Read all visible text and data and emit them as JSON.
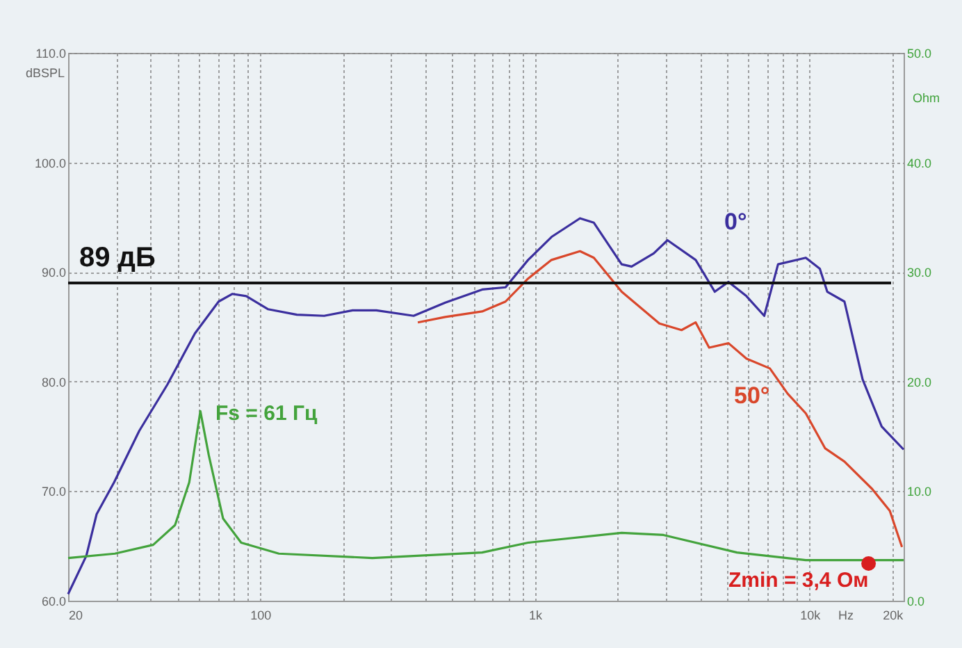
{
  "chart_data": {
    "type": "line",
    "xlim": [
      20,
      22000
    ],
    "log": "x",
    "xticks": [
      20,
      {
        "value": 30,
        "label": null
      },
      {
        "value": 40,
        "label": null
      },
      {
        "value": 50,
        "label": null
      },
      {
        "value": 60,
        "label": null
      },
      {
        "value": 70,
        "label": null
      },
      {
        "value": 80,
        "label": null
      },
      {
        "value": 90,
        "label": null
      },
      100,
      {
        "value": 200,
        "label": null
      },
      {
        "value": 300,
        "label": null
      },
      {
        "value": 400,
        "label": null
      },
      {
        "value": 500,
        "label": null
      },
      {
        "value": 600,
        "label": null
      },
      {
        "value": 700,
        "label": null
      },
      {
        "value": 800,
        "label": null
      },
      {
        "value": 900,
        "label": null
      },
      {
        "value": 1000,
        "label": "1k"
      },
      {
        "value": 2000,
        "label": null
      },
      {
        "value": 3000,
        "label": null
      },
      {
        "value": 4000,
        "label": null
      },
      {
        "value": 5000,
        "label": null
      },
      {
        "value": 6000,
        "label": null
      },
      {
        "value": 7000,
        "label": null
      },
      {
        "value": 8000,
        "label": null
      },
      {
        "value": 9000,
        "label": null
      },
      {
        "value": 10000,
        "label": "10k"
      },
      {
        "value": 20000,
        "label": "20k"
      }
    ],
    "xlabel": "Hz",
    "ylabel": "dBSPL",
    "y2label": "Ohm",
    "ylim": [
      60,
      110
    ],
    "yticks": [
      {
        "value": 60,
        "label": "60.0"
      },
      {
        "value": 70,
        "label": "70.0"
      },
      {
        "value": 80,
        "label": "80.0"
      },
      {
        "value": 90,
        "label": "90.0"
      },
      {
        "value": 100,
        "label": "100.0"
      },
      {
        "value": 110,
        "label": "110.0"
      }
    ],
    "y2lim": [
      0,
      50
    ],
    "y2ticks": [
      {
        "value": 0,
        "label": "0.0"
      },
      {
        "value": 10,
        "label": "10.0"
      },
      {
        "value": 20,
        "label": "20.0"
      },
      {
        "value": 30,
        "label": "30.0"
      },
      {
        "value": 40,
        "label": "40.0"
      },
      {
        "value": 50,
        "label": "50.0"
      }
    ],
    "grid": true,
    "marker": "none",
    "line_style": "solid",
    "series": [
      {
        "name": "50°",
        "color": "#d9472b",
        "x": [
          375,
          472,
          643,
          782,
          945,
          1150,
          1460,
          1640,
          2070,
          2840,
          3420,
          3850,
          4310,
          5070,
          5890,
          7170,
          8320,
          9690,
          11400,
          13400,
          16900,
          19600,
          21700
        ],
        "values": [
          85.4,
          85.9,
          86.4,
          87.3,
          89.4,
          91.1,
          91.9,
          91.3,
          88.2,
          85.3,
          84.7,
          85.4,
          83.1,
          83.5,
          82.1,
          81.2,
          78.9,
          77.1,
          73.9,
          72.7,
          70.2,
          68.2,
          64.9
        ]
      },
      {
        "name": "0°",
        "color": "#3b2f9e",
        "x": [
          20,
          23.3,
          25.4,
          29.4,
          36.3,
          45.9,
          57.9,
          70.6,
          79.3,
          89,
          107,
          136,
          171,
          217,
          265,
          362,
          472,
          643,
          782,
          945,
          1150,
          1460,
          1640,
          2070,
          2250,
          2710,
          3040,
          3850,
          4520,
          5070,
          5890,
          6840,
          7680,
          9690,
          10900,
          11600,
          13400,
          15600,
          18300,
          22000
        ],
        "values": [
          60.6,
          64.1,
          67.9,
          70.8,
          75.5,
          79.7,
          84.4,
          87.3,
          88.0,
          87.8,
          86.6,
          86.1,
          86.0,
          86.5,
          86.5,
          86.0,
          87.2,
          88.4,
          88.6,
          91.1,
          93.2,
          94.9,
          94.5,
          90.7,
          90.5,
          91.7,
          92.9,
          91.1,
          88.2,
          89.1,
          87.8,
          86.0,
          90.7,
          91.3,
          90.3,
          88.2,
          87.3,
          80.2,
          75.9,
          73.8
        ]
      },
      {
        "color": "#43a33c",
        "axis": "y2",
        "x": [
          20,
          29.6,
          40.8,
          49.0,
          55.2,
          60.6,
          65.0,
          73.3,
          85.3,
          117,
          256,
          643,
          945,
          2070,
          2940,
          5440,
          9690,
          22000
        ],
        "values": [
          3.9,
          4.3,
          5.1,
          6.9,
          10.8,
          17.3,
          13.3,
          7.5,
          5.3,
          4.3,
          3.9,
          4.4,
          5.3,
          6.2,
          6.0,
          4.4,
          3.7,
          3.7
        ]
      },
      {
        "color": "#d81e1e",
        "type": "scatter",
        "marker": "circle",
        "axis": "y2",
        "x": [
          16400
        ],
        "values": [
          3.4
        ]
      }
    ],
    "ref_lines": [
      {
        "axis": "y",
        "value": 89,
        "label": "89 дБ",
        "color": "#111111"
      }
    ],
    "annotations": [
      "Fs = 61 Гц",
      "Zmin = 3,4 Ом"
    ]
  }
}
